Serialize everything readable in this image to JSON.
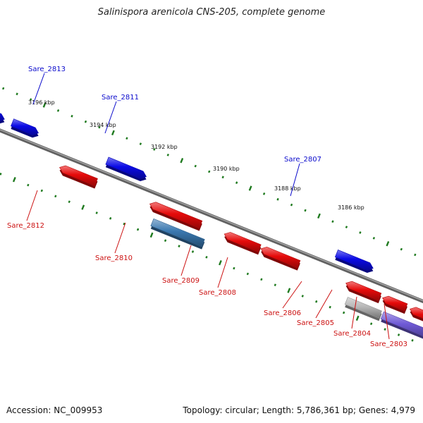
{
  "title": "Salinispora arenicola CNS-205, complete genome",
  "accession_text": "Accession: NC_009953",
  "topology_text": "Topology: circular; Length: 5,786,361 bp; Genes: 4,979",
  "colors": {
    "backbone": "#7a7a7a",
    "tick": "#1f7a1f",
    "plus_gene": "#0a0ae6",
    "minus_gene": "#e60a0a",
    "grey_gene": "#b8b8b8",
    "steel_gene": "#3a78b0",
    "purple_gene": "#6f5ad6",
    "plus_label": "#0a0acc",
    "minus_label": "#cc1111"
  },
  "scale_labels": [
    "3196 kbp",
    "3194 kbp",
    "3192 kbp",
    "3190 kbp",
    "3188 kbp",
    "3186 kbp"
  ],
  "gene_labels_plus": [
    "Sare_2813",
    "Sare_2811",
    "Sare_2807"
  ],
  "gene_labels_minus": [
    "Sare_2812",
    "Sare_2810",
    "Sare_2809",
    "Sare_2808",
    "Sare_2806",
    "Sare_2805",
    "Sare_2804",
    "Sare_2803"
  ]
}
